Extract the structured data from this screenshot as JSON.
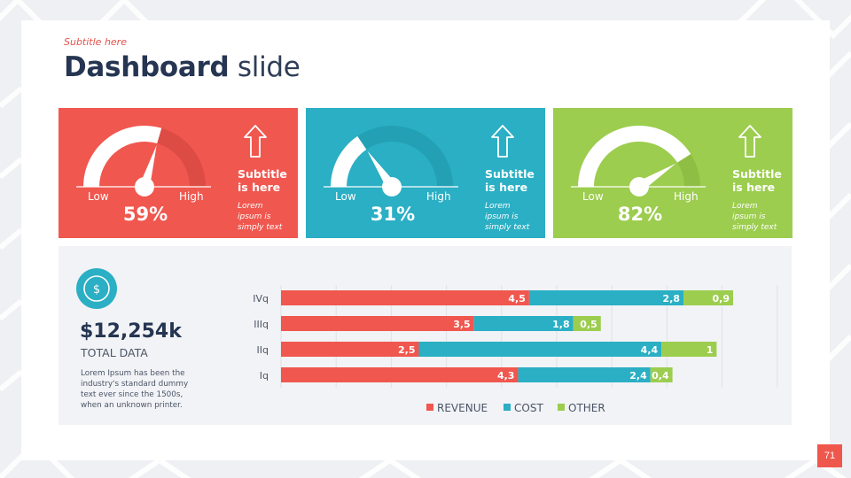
{
  "header": {
    "subtitle": "Subtitle here",
    "title_bold": "Dashboard",
    "title_light": "slide"
  },
  "cards": [
    {
      "percent": 59,
      "percent_label": "59%",
      "low_label": "Low",
      "high_label": "High",
      "subtitle_line1": "Subtitle",
      "subtitle_line2": "is here",
      "text_line1": "Lorem",
      "text_line2": "ipsum is",
      "text_line3": "simply text",
      "color": "#f0574f",
      "track_color": "#dd4b45",
      "icon": "arrow-up-icon"
    },
    {
      "percent": 31,
      "percent_label": "31%",
      "low_label": "Low",
      "high_label": "High",
      "subtitle_line1": "Subtitle",
      "subtitle_line2": "is here",
      "text_line1": "Lorem",
      "text_line2": "ipsum is",
      "text_line3": "simply text",
      "color": "#2aafc4",
      "track_color": "#23a0b4",
      "icon": "arrow-up-icon"
    },
    {
      "percent": 82,
      "percent_label": "82%",
      "low_label": "Low",
      "high_label": "High",
      "subtitle_line1": "Subtitle",
      "subtitle_line2": "is here",
      "text_line1": "Lorem",
      "text_line2": "ipsum is",
      "text_line3": "simply text",
      "color": "#9ccd4e",
      "track_color": "#8fbe45",
      "icon": "arrow-up-icon"
    }
  ],
  "summary": {
    "icon": "dollar-icon",
    "value": "$12,254k",
    "label": "TOTAL DATA",
    "desc_line1": "Lorem Ipsum has been the",
    "desc_line2": "industry's standard dummy",
    "desc_line3": "text ever since the 1500s,",
    "desc_line4": "when an unknown printer."
  },
  "chart_data": {
    "type": "bar",
    "orientation": "horizontal",
    "stacked": true,
    "categories": [
      "IVq",
      "IIIq",
      "IIq",
      "Iq"
    ],
    "series": [
      {
        "name": "REVENUE",
        "color": "#f0574f",
        "values": [
          4.5,
          3.5,
          2.5,
          4.3
        ],
        "labels": [
          "4,5",
          "3,5",
          "2,5",
          "4,3"
        ]
      },
      {
        "name": "COST",
        "color": "#2aafc4",
        "values": [
          2.8,
          1.8,
          4.4,
          2.4
        ],
        "labels": [
          "2,8",
          "1,8",
          "4,4",
          "2,4"
        ]
      },
      {
        "name": "OTHER",
        "color": "#9ccd4e",
        "values": [
          0.9,
          0.5,
          1,
          0.4
        ],
        "labels": [
          "0,9",
          "0,5",
          "1",
          "0,4"
        ]
      }
    ],
    "xlim": [
      0,
      9
    ],
    "grid": true,
    "legend_position": "bottom",
    "title": "",
    "xlabel": "",
    "ylabel": ""
  },
  "footer": {
    "page_number": "71"
  }
}
